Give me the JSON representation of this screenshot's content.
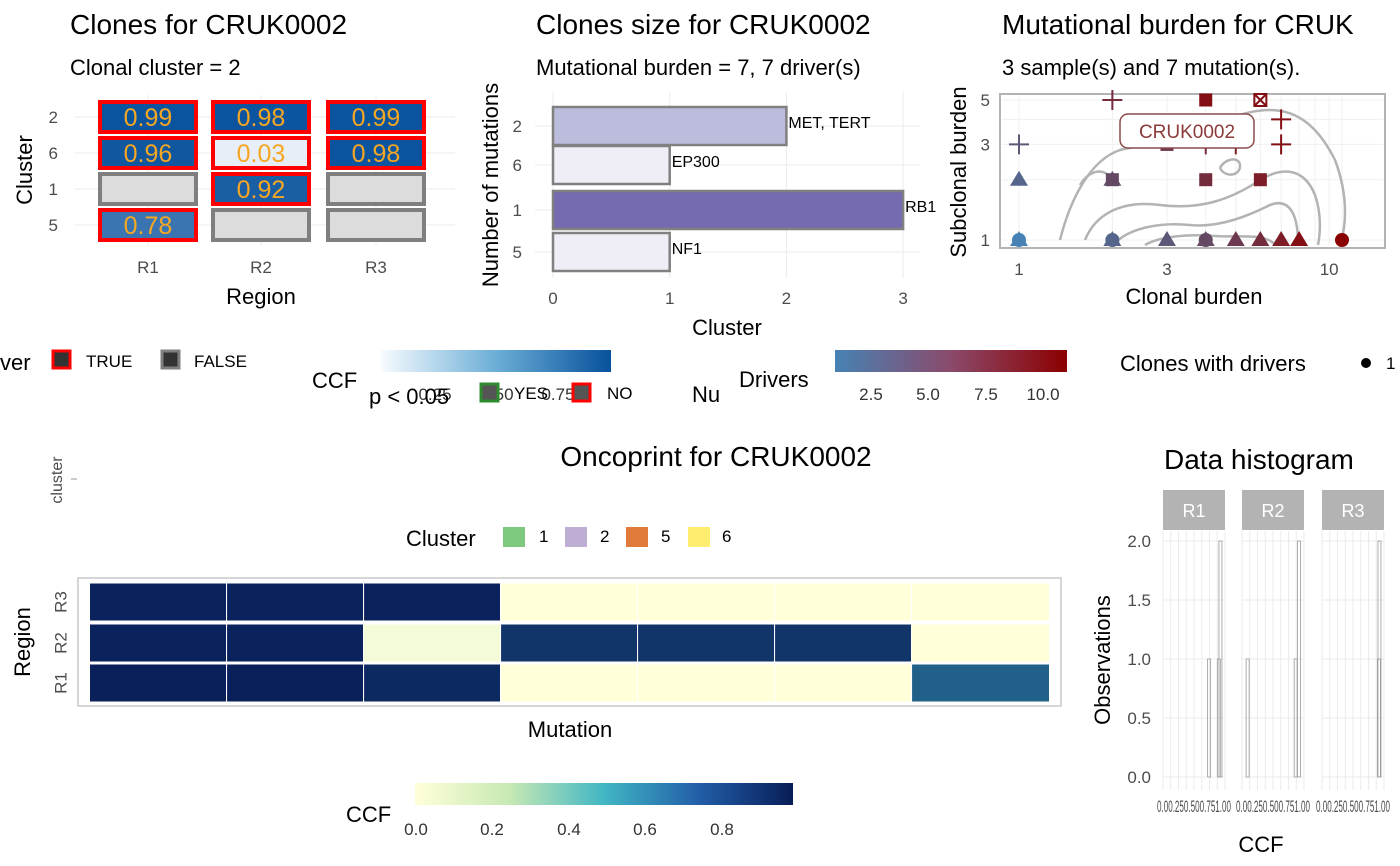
{
  "panel_clones": {
    "title": "Clones for CRUK0002",
    "subtitle": "Clonal cluster =  2",
    "xlabel": "Region",
    "ylabel": "Cluster",
    "legend_title_fragment": "ver",
    "legend_items": [
      {
        "label": "TRUE",
        "border": "#ff0000"
      },
      {
        "label": "FALSE",
        "border": "#7f7f7f"
      }
    ]
  },
  "panel_size": {
    "title": "Clones size for CRUK0002",
    "subtitle": "Mutational burden = 7, 7 driver(s)",
    "xlabel": "Cluster",
    "ylabel": "Number of mutations"
  },
  "panel_burden": {
    "title": "Mutational burden for  CRUK",
    "subtitle": "3 sample(s) and 7 mutation(s).",
    "xlabel": "Clonal burden",
    "ylabel": "Subclonal burden",
    "label_box": "CRUK0002"
  },
  "legends_middle": {
    "ccf_title": "CCF",
    "ccf_ticks": [
      "0.25",
      "0.50",
      "0.75"
    ],
    "p_title": "p < 0.05",
    "p_items": [
      {
        "label": "YES",
        "border": "#2e8b2e"
      },
      {
        "label": "NO",
        "border": "#ff0000"
      }
    ],
    "nu_title": "Nu",
    "drivers_title": "Drivers",
    "drivers_ticks": [
      "2.5",
      "5.0",
      "7.5",
      "10.0"
    ],
    "clones_title": "Clones with drivers",
    "clones_item": "1"
  },
  "panel_oncoprint": {
    "title": "Oncoprint for CRUK0002",
    "strip_axis_label": "cluster",
    "cluster_legend_title": "Cluster",
    "cluster_legend": [
      {
        "label": "1",
        "color": "#7fc97f"
      },
      {
        "label": "2",
        "color": "#beaed4"
      },
      {
        "label": "5",
        "color": "#e07b39"
      },
      {
        "label": "6",
        "color": "#ffed6f"
      }
    ],
    "xlabel": "Mutation",
    "ylabel": "Region",
    "ccf_title": "CCF",
    "ccf_ticks": [
      "0.0",
      "0.2",
      "0.4",
      "0.6",
      "0.8"
    ]
  },
  "panel_histogram": {
    "title": "Data histogram",
    "xlabel": "CCF",
    "ylabel": "Observations",
    "x_tick_text": "0.00.250.500.751.00"
  },
  "chart_data": [
    {
      "type": "heatmap",
      "title": "Clones for CRUK0002",
      "subtitle": "Clonal cluster =  2",
      "xlabel": "Region",
      "ylabel": "Cluster",
      "x": [
        "R1",
        "R2",
        "R3"
      ],
      "y": [
        "2",
        "6",
        "1",
        "5"
      ],
      "values": [
        [
          0.99,
          0.98,
          0.99
        ],
        [
          0.96,
          0.03,
          0.98
        ],
        [
          null,
          0.92,
          null
        ],
        [
          0.78,
          null,
          null
        ]
      ],
      "driver": [
        [
          true,
          true,
          true
        ],
        [
          true,
          true,
          true
        ],
        [
          false,
          true,
          false
        ],
        [
          true,
          false,
          false
        ]
      ],
      "color_scale": [
        "#eef3fb",
        "#08519c"
      ]
    },
    {
      "type": "bar",
      "orientation": "horizontal",
      "title": "Clones size for CRUK0002",
      "subtitle": "Mutational burden = 7, 7 driver(s)",
      "xlabel": "Cluster",
      "ylabel": "Number of mutations",
      "categories": [
        "2",
        "6",
        "1",
        "5"
      ],
      "values": [
        2,
        1,
        3,
        1
      ],
      "annotations": [
        "MET, TERT",
        "EP300",
        "RB1",
        "NF1"
      ],
      "colors": [
        "#bcbddc",
        "#efedf5",
        "#756bb1",
        "#efedf5"
      ],
      "xlim": [
        0,
        3
      ],
      "x_ticks": [
        "0",
        "1",
        "2",
        "3"
      ]
    },
    {
      "type": "scatter",
      "title": "Mutational burden for  CRUK",
      "subtitle": "3 sample(s) and 7 mutation(s).",
      "xlabel": "Clonal burden",
      "ylabel": "Subclonal burden",
      "x_scale": "log",
      "y_scale": "log",
      "x_ticks": [
        "1",
        "3",
        "10"
      ],
      "y_ticks": [
        "1",
        "3",
        "5"
      ],
      "xlim": [
        1,
        11
      ],
      "ylim": [
        1,
        5
      ],
      "color_scale": [
        "#4682b4",
        "#8b0000"
      ],
      "points": [
        {
          "x": 1,
          "y": 1,
          "shape": "circle",
          "drivers": 1
        },
        {
          "x": 1,
          "y": 1,
          "shape": "triangle",
          "drivers": 1
        },
        {
          "x": 1,
          "y": 2,
          "shape": "triangle",
          "drivers": 3
        },
        {
          "x": 1,
          "y": 3,
          "shape": "plus",
          "drivers": 4
        },
        {
          "x": 2,
          "y": 1,
          "shape": "circle",
          "drivers": 3
        },
        {
          "x": 2,
          "y": 1,
          "shape": "triangle",
          "drivers": 3
        },
        {
          "x": 2,
          "y": 2,
          "shape": "triangle",
          "drivers": 4
        },
        {
          "x": 2,
          "y": 2,
          "shape": "square",
          "drivers": 5
        },
        {
          "x": 2,
          "y": 5,
          "shape": "plus",
          "drivers": 7
        },
        {
          "x": 3,
          "y": 1,
          "shape": "triangle",
          "drivers": 4
        },
        {
          "x": 3,
          "y": 3,
          "shape": "square",
          "drivers": 6
        },
        {
          "x": 4,
          "y": 1,
          "shape": "triangle",
          "drivers": 5
        },
        {
          "x": 4,
          "y": 1,
          "shape": "circle",
          "drivers": 5
        },
        {
          "x": 4,
          "y": 2,
          "shape": "square",
          "drivers": 7
        },
        {
          "x": 4,
          "y": 3,
          "shape": "plus",
          "drivers": 7
        },
        {
          "x": 4,
          "y": 5,
          "shape": "square",
          "drivers": 9
        },
        {
          "x": 5,
          "y": 1,
          "shape": "triangle",
          "drivers": 6
        },
        {
          "x": 5,
          "y": 3,
          "shape": "plus",
          "drivers": 8
        },
        {
          "x": 6,
          "y": 1,
          "shape": "triangle",
          "drivers": 7
        },
        {
          "x": 6,
          "y": 2,
          "shape": "square",
          "drivers": 8
        },
        {
          "x": 6,
          "y": 5,
          "shape": "boxx",
          "drivers": 9
        },
        {
          "x": 7,
          "y": 1,
          "shape": "triangle",
          "drivers": 8
        },
        {
          "x": 7,
          "y": 3,
          "shape": "plus",
          "drivers": 9
        },
        {
          "x": 7,
          "y": 4,
          "shape": "plus",
          "drivers": 9
        },
        {
          "x": 8,
          "y": 1,
          "shape": "triangle",
          "drivers": 9
        },
        {
          "x": 11,
          "y": 1,
          "shape": "circle",
          "drivers": 10
        }
      ]
    },
    {
      "type": "heatmap",
      "title": "Oncoprint for CRUK0002",
      "xlabel": "Mutation",
      "ylabel": "Region",
      "regions": [
        "R3",
        "R2",
        "R1"
      ],
      "mutations": 7,
      "values": [
        [
          0.98,
          0.98,
          0.98,
          0.0,
          0.0,
          0.0,
          0.0
        ],
        [
          0.98,
          0.98,
          0.03,
          0.92,
          0.92,
          0.92,
          0.0
        ],
        [
          0.99,
          0.99,
          0.96,
          0.0,
          0.0,
          0.0,
          0.78
        ]
      ],
      "color_scale": [
        "#ffffd9",
        "#41b6c4",
        "#081d58"
      ]
    },
    {
      "type": "bar",
      "title": "Data histogram",
      "xlabel": "CCF",
      "ylabel": "Observations",
      "facets": [
        "R1",
        "R2",
        "R3"
      ],
      "ylim": [
        0,
        2.2
      ],
      "y_ticks": [
        "0.0",
        "0.5",
        "1.0",
        "1.5",
        "2.0"
      ],
      "bins": [
        {
          "facet": "R1",
          "x": [
            0.78,
            0.96,
            0.99
          ],
          "counts": [
            1,
            1,
            2
          ]
        },
        {
          "facet": "R2",
          "x": [
            0.03,
            0.92,
            0.98
          ],
          "counts": [
            1,
            1,
            2
          ]
        },
        {
          "facet": "R3",
          "x": [
            0.98,
            0.99
          ],
          "counts": [
            1,
            2
          ]
        }
      ]
    }
  ]
}
